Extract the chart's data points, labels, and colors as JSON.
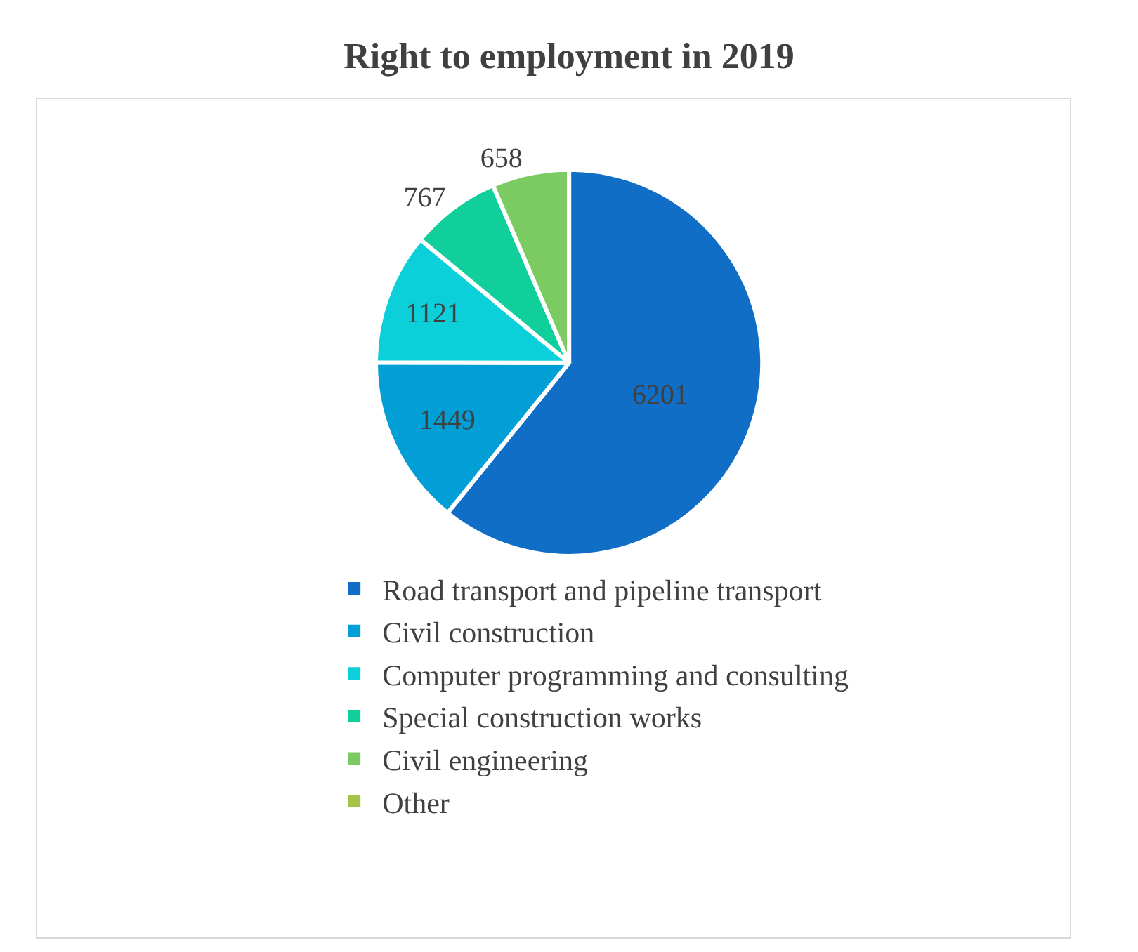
{
  "chart_data": {
    "type": "pie",
    "title": "Right to employment in 2019",
    "categories": [
      "Road transport and pipeline transport",
      "Civil construction",
      "Computer programming and consulting",
      "Special construction works",
      "Civil engineering",
      "Other"
    ],
    "values": [
      6201,
      1449,
      1121,
      767,
      658,
      0
    ],
    "value_labels": [
      "6201",
      "1449",
      "1121",
      "767",
      "658",
      null
    ],
    "colors": [
      "#106ec6",
      "#029fd6",
      "#0bd0d9",
      "#10cf9b",
      "#7cca62",
      "#a5c249"
    ],
    "legend": "bottom"
  }
}
